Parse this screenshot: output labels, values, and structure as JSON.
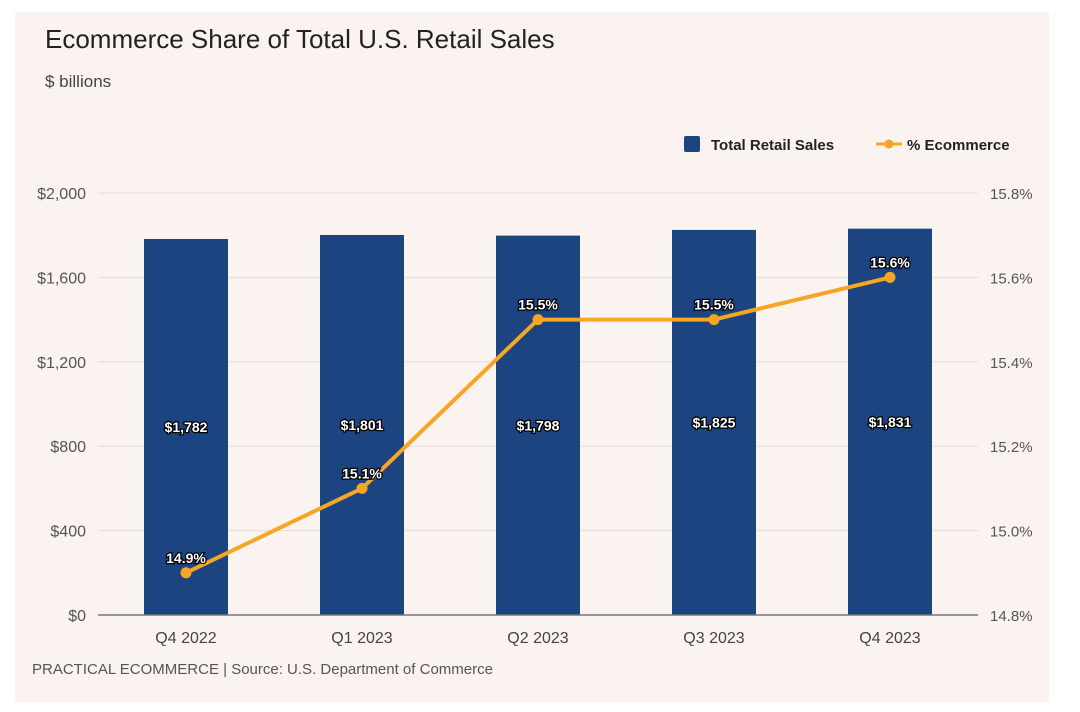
{
  "chart_data": {
    "type": "bar",
    "title": "Ecommerce Share of Total U.S. Retail Sales",
    "subtitle": "$ billions",
    "source": "PRACTICAL ECOMMERCE | Source: U.S. Department of Commerce",
    "categories": [
      "Q4 2022",
      "Q1 2023",
      "Q2 2023",
      "Q3 2023",
      "Q4 2023"
    ],
    "series": [
      {
        "name": "Total Retail Sales",
        "type": "bar",
        "axis": "left",
        "color": "#1b4480",
        "values": [
          1782,
          1801,
          1798,
          1825,
          1831
        ],
        "labels": [
          "$1,782",
          "$1,801",
          "$1,798",
          "$1,825",
          "$1,831"
        ]
      },
      {
        "name": "% Ecommerce",
        "type": "line",
        "axis": "right",
        "color": "#f6a623",
        "values": [
          14.9,
          15.1,
          15.5,
          15.5,
          15.6
        ],
        "labels": [
          "14.9%",
          "15.1%",
          "15.5%",
          "15.5%",
          "15.6%"
        ]
      }
    ],
    "y_left": {
      "range": [
        0,
        2000
      ],
      "ticks": [
        0,
        400,
        800,
        1200,
        1600,
        2000
      ],
      "tick_labels": [
        "$0",
        "$400",
        "$800",
        "$1,200",
        "$1,600",
        "$2,000"
      ]
    },
    "y_right": {
      "range": [
        14.8,
        15.8
      ],
      "ticks": [
        14.8,
        15.0,
        15.2,
        15.4,
        15.6,
        15.8
      ],
      "tick_labels": [
        "14.8%",
        "15.0%",
        "15.2%",
        "15.4%",
        "15.6%",
        "15.8%"
      ]
    },
    "legend": {
      "position": "top-right",
      "items": [
        "Total Retail Sales",
        "% Ecommerce"
      ]
    },
    "grid": true
  }
}
